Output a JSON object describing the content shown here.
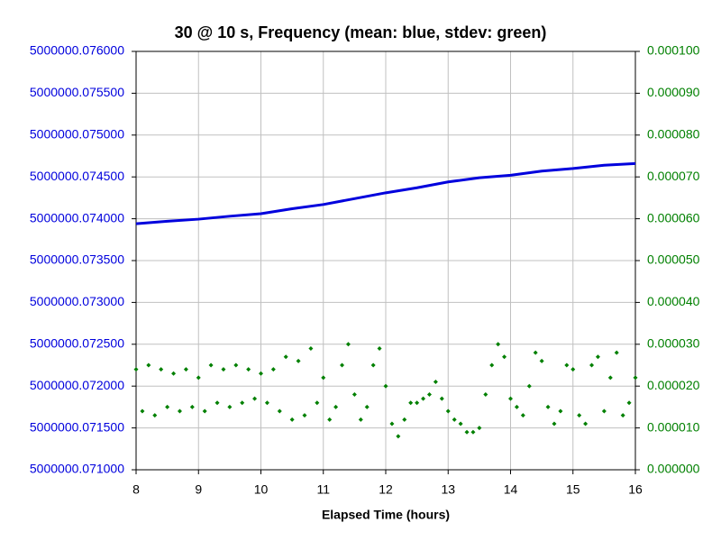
{
  "chart_data": {
    "type": "line",
    "title": "30 @ 10 s, Frequency (mean: blue, stdev: green)",
    "xlabel": "Elapsed Time (hours)",
    "xlim": [
      8,
      16
    ],
    "xticks": [
      8,
      9,
      10,
      11,
      12,
      13,
      14,
      15,
      16
    ],
    "ylim": [
      5000000.071,
      5000000.076
    ],
    "yticks": [
      {
        "value": 5000000.071,
        "label": "5000000.071000"
      },
      {
        "value": 5000000.0715,
        "label": "5000000.071500"
      },
      {
        "value": 5000000.072,
        "label": "5000000.072000"
      },
      {
        "value": 5000000.0725,
        "label": "5000000.072500"
      },
      {
        "value": 5000000.073,
        "label": "5000000.073000"
      },
      {
        "value": 5000000.0735,
        "label": "5000000.073500"
      },
      {
        "value": 5000000.074,
        "label": "5000000.074000"
      },
      {
        "value": 5000000.0745,
        "label": "5000000.074500"
      },
      {
        "value": 5000000.075,
        "label": "5000000.075000"
      },
      {
        "value": 5000000.0755,
        "label": "5000000.075500"
      },
      {
        "value": 5000000.076,
        "label": "5000000.076000"
      }
    ],
    "y2lim": [
      0,
      0.0001
    ],
    "y2ticks": [
      {
        "value": 0,
        "label": "0.000000"
      },
      {
        "value": 1e-05,
        "label": "0.000010"
      },
      {
        "value": 2e-05,
        "label": "0.000020"
      },
      {
        "value": 3e-05,
        "label": "0.000030"
      },
      {
        "value": 4e-05,
        "label": "0.000040"
      },
      {
        "value": 5e-05,
        "label": "0.000050"
      },
      {
        "value": 6e-05,
        "label": "0.000060"
      },
      {
        "value": 7e-05,
        "label": "0.000070"
      },
      {
        "value": 8e-05,
        "label": "0.000080"
      },
      {
        "value": 9e-05,
        "label": "0.000090"
      },
      {
        "value": 0.0001,
        "label": "0.000100"
      }
    ],
    "grid": true,
    "series": [
      {
        "color": "#0000dd",
        "axis": "y",
        "style": "line",
        "x": [
          8,
          8.5,
          9,
          9.5,
          10,
          10.5,
          11,
          11.5,
          12,
          12.5,
          13,
          13.5,
          14,
          14.5,
          15,
          15.5,
          16
        ],
        "values": [
          5000000.07394,
          5000000.07397,
          5000000.073995,
          5000000.07403,
          5000000.07406,
          5000000.07412,
          5000000.07417,
          5000000.07424,
          5000000.07431,
          5000000.07437,
          5000000.07444,
          5000000.07449,
          5000000.07452,
          5000000.07457,
          5000000.0746,
          5000000.07464,
          5000000.07466
        ]
      },
      {
        "color": "#008000",
        "axis": "y2",
        "style": "markers",
        "x": [
          8,
          8.1,
          8.2,
          8.3,
          8.4,
          8.5,
          8.6,
          8.7,
          8.8,
          8.9,
          9,
          9.1,
          9.2,
          9.3,
          9.4,
          9.5,
          9.6,
          9.7,
          9.8,
          9.9,
          10,
          10.1,
          10.2,
          10.3,
          10.4,
          10.5,
          10.6,
          10.7,
          10.8,
          10.9,
          11,
          11.1,
          11.2,
          11.3,
          11.4,
          11.5,
          11.6,
          11.7,
          11.8,
          11.9,
          12,
          12.1,
          12.2,
          12.3,
          12.4,
          12.5,
          12.6,
          12.7,
          12.8,
          12.9,
          13,
          13.1,
          13.2,
          13.3,
          13.4,
          13.5,
          13.6,
          13.7,
          13.8,
          13.9,
          14,
          14.1,
          14.2,
          14.3,
          14.4,
          14.5,
          14.6,
          14.7,
          14.8,
          14.9,
          15,
          15.1,
          15.2,
          15.3,
          15.4,
          15.5,
          15.6,
          15.7,
          15.8,
          15.9,
          16
        ],
        "values": [
          2.4e-05,
          1.4e-05,
          2.5e-05,
          1.3e-05,
          2.4e-05,
          1.5e-05,
          2.3e-05,
          1.4e-05,
          2.4e-05,
          1.5e-05,
          2.2e-05,
          1.4e-05,
          2.5e-05,
          1.6e-05,
          2.4e-05,
          1.5e-05,
          2.5e-05,
          1.6e-05,
          2.4e-05,
          1.7e-05,
          2.3e-05,
          1.6e-05,
          2.4e-05,
          1.4e-05,
          2.7e-05,
          1.2e-05,
          2.6e-05,
          1.3e-05,
          2.9e-05,
          1.6e-05,
          2.2e-05,
          1.2e-05,
          1.5e-05,
          2.5e-05,
          3e-05,
          1.8e-05,
          1.2e-05,
          1.5e-05,
          2.5e-05,
          2.9e-05,
          2e-05,
          1.1e-05,
          8e-06,
          1.2e-05,
          1.6e-05,
          1.6e-05,
          1.7e-05,
          1.8e-05,
          2.1e-05,
          1.7e-05,
          1.4e-05,
          1.2e-05,
          1.1e-05,
          9e-06,
          9e-06,
          1e-05,
          1.8e-05,
          2.5e-05,
          3e-05,
          2.7e-05,
          1.7e-05,
          1.5e-05,
          1.3e-05,
          2e-05,
          2.8e-05,
          2.6e-05,
          1.5e-05,
          1.1e-05,
          1.4e-05,
          2.5e-05,
          2.4e-05,
          1.3e-05,
          1.1e-05,
          2.5e-05,
          2.7e-05,
          1.4e-05,
          2.2e-05,
          2.8e-05,
          1.3e-05,
          1.6e-05,
          2.2e-05
        ]
      }
    ]
  }
}
